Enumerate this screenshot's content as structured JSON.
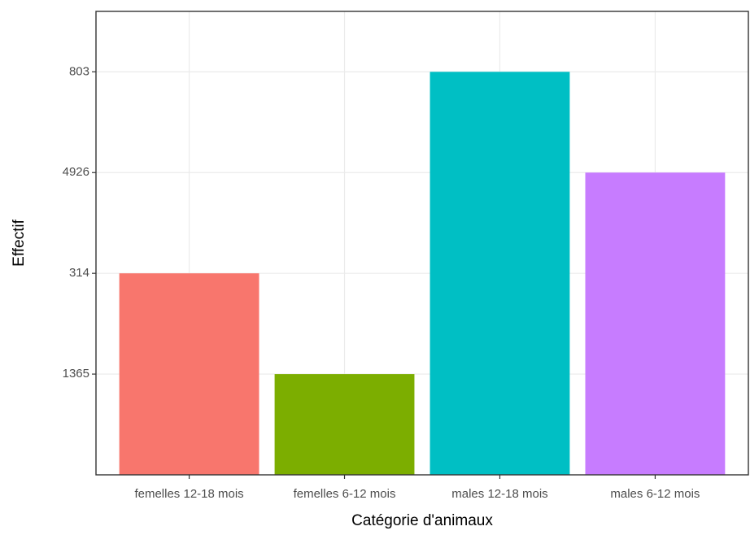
{
  "chart_data": {
    "type": "bar",
    "x_label": "Catégorie d'animaux",
    "y_label": "Effectif",
    "categories": [
      "femelles 12-18 mois",
      "femelles 6-12 mois",
      "males 12-18 mois",
      "males 6-12 mois"
    ],
    "values": [
      2,
      1,
      4,
      3
    ],
    "colors": [
      "#f8766d",
      "#7cae00",
      "#00bfc4",
      "#c77cff"
    ],
    "ylim": [
      0,
      4.6
    ],
    "yticks": [
      {
        "value": 1,
        "label": "1365"
      },
      {
        "value": 2,
        "label": "314"
      },
      {
        "value": 3,
        "label": "4926"
      },
      {
        "value": 4,
        "label": "803"
      }
    ],
    "grid": true
  }
}
